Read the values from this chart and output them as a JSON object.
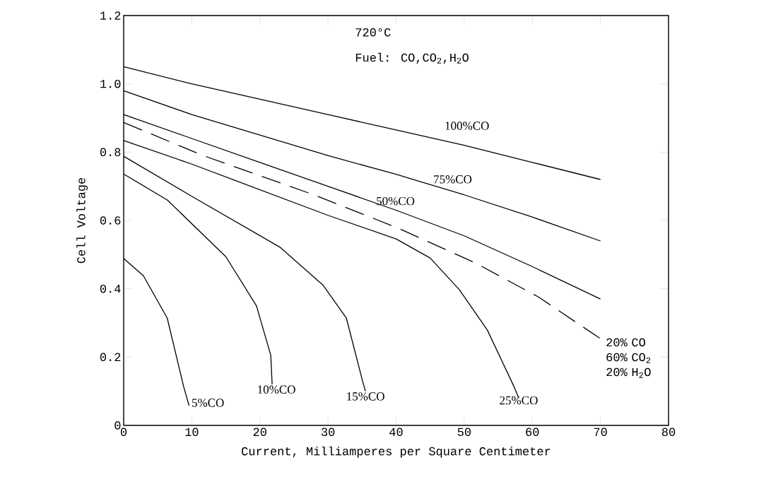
{
  "chart_data": {
    "type": "line",
    "xlabel": "Current, Milliamperes per Square Centimeter",
    "ylabel": "Cell Voltage",
    "annotations": [
      "720°C",
      "Fuel: CO,CO$_{2}$,H$_{2}$O"
    ],
    "xlim": [
      0,
      80
    ],
    "ylim": [
      0,
      1.2
    ],
    "xticks": [
      0,
      10,
      20,
      30,
      40,
      50,
      60,
      70,
      80
    ],
    "yticks": [
      0,
      0.2,
      0.4,
      0.6,
      0.8,
      {
        "value": 1.0,
        "label": "1.0"
      },
      1.2
    ],
    "grid": false,
    "series": [
      {
        "name": "100%CO",
        "color": "#000000",
        "line_style": "solid",
        "x": [
          0,
          10,
          20,
          30,
          40,
          50,
          60,
          70
        ],
        "values": [
          1.05,
          1.0,
          0.955,
          0.91,
          0.865,
          0.82,
          0.77,
          0.72
        ]
      },
      {
        "name": "75%CO",
        "color": "#000000",
        "line_style": "solid",
        "x": [
          0,
          10,
          20,
          30,
          40,
          50,
          60,
          70
        ],
        "values": [
          0.98,
          0.91,
          0.85,
          0.79,
          0.735,
          0.675,
          0.61,
          0.54
        ]
      },
      {
        "name": "50%CO",
        "color": "#000000",
        "line_style": "solid",
        "x": [
          0,
          10,
          20,
          30,
          40,
          50,
          60,
          70
        ],
        "values": [
          0.91,
          0.84,
          0.77,
          0.7,
          0.63,
          0.555,
          0.465,
          0.37
        ]
      },
      {
        "name": "20% CO 60% CO$_{2}$ 20% H$_{2}$O",
        "color": "#000000",
        "line_style": "dashed",
        "x": [
          0,
          11.4,
          27.8,
          40,
          51.6,
          60.9,
          70
        ],
        "values": [
          0.887,
          0.792,
          0.676,
          0.58,
          0.476,
          0.376,
          0.254
        ]
      },
      {
        "name": "25%CO",
        "color": "#000000",
        "line_style": "solid",
        "x": [
          0,
          10,
          20,
          30,
          40,
          45,
          49.3,
          53.4,
          57.3,
          58
        ],
        "values": [
          0.834,
          0.765,
          0.69,
          0.615,
          0.546,
          0.49,
          0.397,
          0.279,
          0.114,
          0.08
        ]
      },
      {
        "name": "15%CO",
        "color": "#000000",
        "line_style": "solid",
        "x": [
          0,
          9.9,
          23,
          29.3,
          32.7,
          35.1,
          35.5
        ],
        "values": [
          0.788,
          0.672,
          0.521,
          0.41,
          0.314,
          0.128,
          0.1
        ]
      },
      {
        "name": "10%CO",
        "color": "#000000",
        "line_style": "solid",
        "x": [
          0,
          6.4,
          15,
          19.5,
          21.6,
          21.8
        ],
        "values": [
          0.736,
          0.66,
          0.494,
          0.35,
          0.205,
          0.12
        ]
      },
      {
        "name": "5%CO",
        "color": "#000000",
        "line_style": "solid",
        "x": [
          0,
          2.9,
          6.4,
          8.8,
          9.6
        ],
        "values": [
          0.489,
          0.438,
          0.314,
          0.114,
          0.058
        ]
      }
    ]
  }
}
